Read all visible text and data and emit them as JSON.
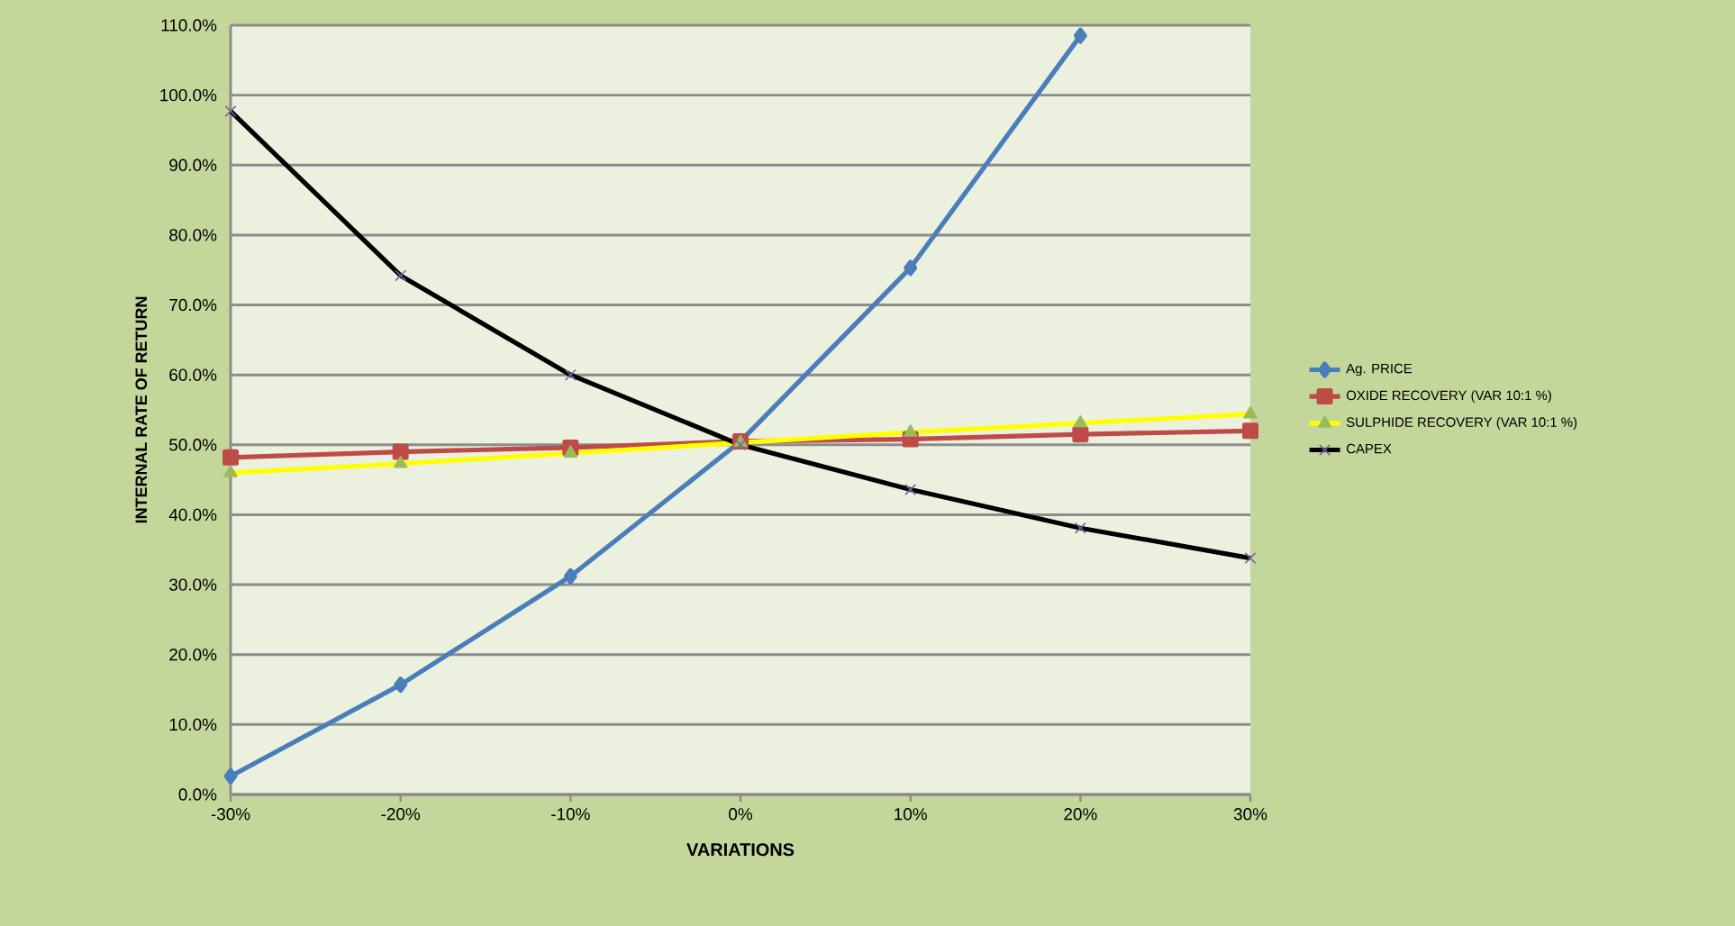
{
  "chart_data": {
    "type": "line",
    "xlabel": "VARIATIONS",
    "ylabel": "INTERNAL RATE OF RETURN",
    "categories": [
      "-30%",
      "-20%",
      "-10%",
      "0%",
      "10%",
      "20%",
      "30%"
    ],
    "series": [
      {
        "name": "Ag. PRICE",
        "color": "#4a7ebb",
        "marker": "diamond",
        "values": [
          2.6,
          15.7,
          31.2,
          50.5,
          75.3,
          108.5,
          null
        ]
      },
      {
        "name": "OXIDE RECOVERY (VAR 10:1 %)",
        "color": "#be4b48",
        "marker": "square",
        "values": [
          48.2,
          49.0,
          49.6,
          50.5,
          50.8,
          51.5,
          52.0
        ]
      },
      {
        "name": "SULPHIDE RECOVERY (VAR 10:1 %)",
        "color": "#ffff00",
        "marker": "triangle",
        "values": [
          46.0,
          47.3,
          48.8,
          50.3,
          51.8,
          53.1,
          54.4
        ]
      },
      {
        "name": "CAPEX",
        "color": "#000000",
        "marker": "cross",
        "values": [
          97.7,
          74.2,
          60.0,
          50.0,
          43.6,
          38.1,
          33.8
        ]
      }
    ],
    "ylim": [
      0,
      110
    ],
    "yticks": [
      {
        "value": 0,
        "label": "0.0%"
      },
      {
        "value": 10,
        "label": "10.0%"
      },
      {
        "value": 20,
        "label": "20.0%"
      },
      {
        "value": 30,
        "label": "30.0%"
      },
      {
        "value": 40,
        "label": "40.0%"
      },
      {
        "value": 50,
        "label": "50.0%"
      },
      {
        "value": 60,
        "label": "60.0%"
      },
      {
        "value": 70,
        "label": "70.0%"
      },
      {
        "value": 80,
        "label": "80.0%"
      },
      {
        "value": 90,
        "label": "90.0%"
      },
      {
        "value": 100,
        "label": "100.0%"
      },
      {
        "value": 110,
        "label": "110.0%"
      }
    ],
    "grid": "y",
    "legend": "right",
    "line_style": "solid"
  }
}
